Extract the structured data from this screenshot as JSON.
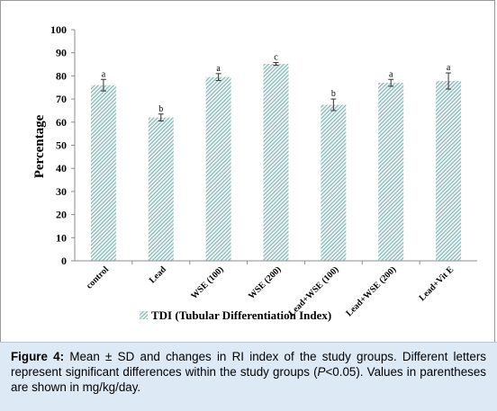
{
  "chart_data": {
    "type": "bar",
    "categories": [
      "control",
      "Lead",
      "WSE (100)",
      "WSE (200)",
      "Lead+WSE (100)",
      "Lead+WSE (200)",
      "Lead+Vit E"
    ],
    "series": [
      {
        "name": "TDI (Tubular Differentiation Index)",
        "values": [
          76,
          62,
          79.5,
          85.2,
          67.5,
          77,
          77.8
        ],
        "errors": [
          2.5,
          1.5,
          1.5,
          0.6,
          2.5,
          1.5,
          3.5
        ],
        "letters": [
          "a",
          "b",
          "a",
          "c",
          "b",
          "a",
          "a"
        ]
      }
    ],
    "ylabel": "Percentage",
    "xlabel": "",
    "ylim": [
      0,
      100
    ],
    "yticks": [
      "0",
      "10",
      "20",
      "30",
      "40",
      "50",
      "60",
      "70",
      "80",
      "90",
      "100"
    ],
    "legend_position": "bottom",
    "grid": false,
    "bar_pattern": "diagonal-hatch",
    "bar_color": "#6fa8a8"
  },
  "caption": {
    "label": "Figure 4:",
    "before_italic": " Mean ± SD and changes in RI index of the study groups. Different letters represent significant differences within the study groups (",
    "italic": "P",
    "after_italic": "<0.05). Values in parentheses are shown in mg/kg/day."
  }
}
